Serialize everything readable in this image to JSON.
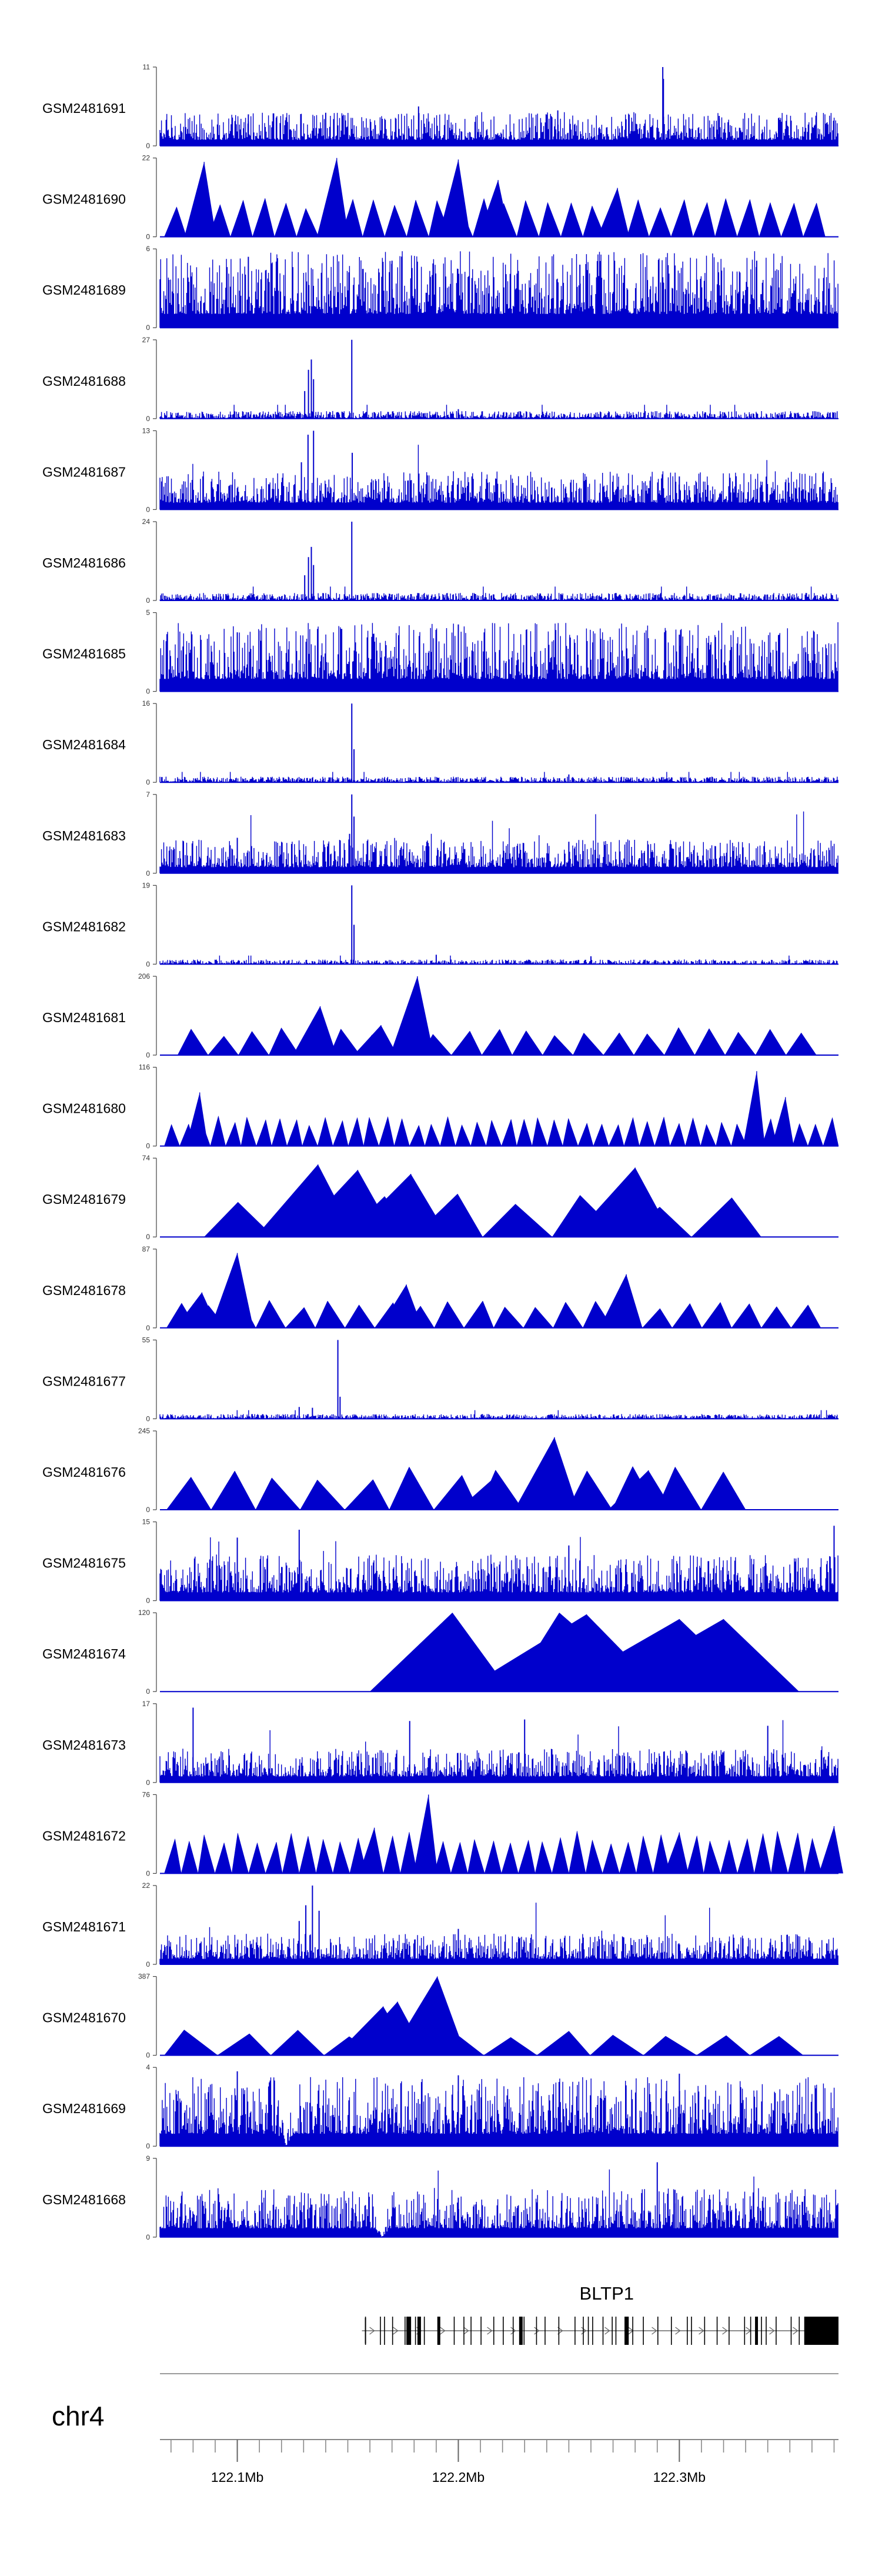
{
  "chart_data": {
    "type": "area",
    "title": "",
    "xlabel": "",
    "ylabel": "",
    "x_range_mb": [
      122.065,
      122.372
    ],
    "color": "#0000cc",
    "tracks": [
      {
        "name": "GSM2481691",
        "ymax": "11",
        "ymin": "0",
        "max": 11,
        "pattern": "dense",
        "level": 0.22,
        "peaks": [
          [
            122.2925,
            1.0
          ],
          [
            122.2928,
            0.85
          ],
          [
            122.245,
            0.45
          ],
          [
            122.14,
            0.42
          ],
          [
            122.318,
            0.38
          ],
          [
            122.182,
            0.5
          ],
          [
            122.105,
            0.4
          ]
        ]
      },
      {
        "name": "GSM2481690",
        "ymax": "22",
        "ymin": "0",
        "max": 22,
        "pattern": "triangles",
        "tri_count": 30,
        "span": [
          122.067,
          122.366
        ],
        "level": 0.45,
        "peaks": [
          [
            122.085,
            0.95
          ],
          [
            122.145,
            1.0
          ],
          [
            122.2,
            0.98
          ],
          [
            122.218,
            0.72
          ],
          [
            122.272,
            0.62
          ]
        ]
      },
      {
        "name": "GSM2481689",
        "ymax": "6",
        "ymin": "0",
        "max": 6,
        "pattern": "dense",
        "level": 0.5,
        "peaks": [
          [
            122.105,
            0.9
          ],
          [
            122.17,
            0.85
          ],
          [
            122.255,
            0.8
          ],
          [
            122.335,
            0.85
          ]
        ]
      },
      {
        "name": "GSM2481688",
        "ymax": "27",
        "ymin": "0",
        "max": 27,
        "pattern": "sparse",
        "level": 0.08,
        "peaks": [
          [
            122.1322,
            0.62
          ],
          [
            122.1335,
            0.75
          ],
          [
            122.1345,
            0.5
          ],
          [
            122.1305,
            0.35
          ],
          [
            122.1518,
            1.0
          ],
          [
            122.2,
            0.12
          ]
        ]
      },
      {
        "name": "GSM2481687",
        "ymax": "13",
        "ymin": "0",
        "max": 13,
        "pattern": "dense",
        "level": 0.25,
        "peaks": [
          [
            122.132,
            0.95
          ],
          [
            122.1345,
            1.0
          ],
          [
            122.129,
            0.6
          ],
          [
            122.152,
            0.72
          ],
          [
            122.2,
            0.4
          ],
          [
            122.3,
            0.42
          ]
        ]
      },
      {
        "name": "GSM2481686",
        "ymax": "24",
        "ymin": "0",
        "max": 24,
        "pattern": "sparse",
        "level": 0.08,
        "peaks": [
          [
            122.1322,
            0.55
          ],
          [
            122.1335,
            0.68
          ],
          [
            122.1345,
            0.45
          ],
          [
            122.1305,
            0.32
          ],
          [
            122.1518,
            1.0
          ]
        ]
      },
      {
        "name": "GSM2481685",
        "ymax": "5",
        "ymin": "0",
        "max": 5,
        "pattern": "dense",
        "level": 0.45,
        "peaks": [
          [
            122.2,
            0.85
          ],
          [
            122.1,
            0.75
          ],
          [
            122.3,
            0.72
          ]
        ]
      },
      {
        "name": "GSM2481684",
        "ymax": "16",
        "ymin": "0",
        "max": 16,
        "pattern": "sparse",
        "level": 0.06,
        "peaks": [
          [
            122.1518,
            1.0
          ],
          [
            122.1528,
            0.42
          ],
          [
            122.25,
            0.1
          ]
        ]
      },
      {
        "name": "GSM2481683",
        "ymax": "7",
        "ymin": "0",
        "max": 7,
        "pattern": "dense",
        "level": 0.22,
        "peaks": [
          [
            122.1518,
            1.0
          ],
          [
            122.1528,
            0.72
          ],
          [
            122.1508,
            0.5
          ],
          [
            122.1,
            0.45
          ],
          [
            122.25,
            0.4
          ]
        ]
      },
      {
        "name": "GSM2481682",
        "ymax": "19",
        "ymin": "0",
        "max": 19,
        "pattern": "sparse",
        "level": 0.05,
        "peaks": [
          [
            122.1518,
            1.0
          ],
          [
            122.1528,
            0.5
          ],
          [
            122.19,
            0.12
          ],
          [
            122.26,
            0.1
          ]
        ]
      },
      {
        "name": "GSM2481681",
        "ymax": "206",
        "ymin": "0",
        "max": 206,
        "pattern": "triangles",
        "tri_count": 21,
        "span": [
          122.073,
          122.362
        ],
        "level": 0.32,
        "peaks": [
          [
            122.1815,
            1.0
          ],
          [
            122.1375,
            0.62
          ],
          [
            122.165,
            0.38
          ]
        ]
      },
      {
        "name": "GSM2481680",
        "ymax": "116",
        "ymin": "0",
        "max": 116,
        "pattern": "triangles",
        "tri_count": 44,
        "span": [
          122.067,
          122.372
        ],
        "level": 0.35,
        "peaks": [
          [
            122.083,
            0.68
          ],
          [
            122.335,
            0.95
          ],
          [
            122.348,
            0.62
          ]
        ]
      },
      {
        "name": "GSM2481679",
        "ymax": "74",
        "ymin": "0",
        "max": 74,
        "pattern": "triangles",
        "tri_count": 8,
        "span": [
          122.085,
          122.337
        ],
        "level": 0.5,
        "peaks": [
          [
            122.1365,
            0.92
          ],
          [
            122.1545,
            0.85
          ],
          [
            122.1785,
            0.8
          ],
          [
            122.28,
            0.88
          ]
        ]
      },
      {
        "name": "GSM2481678",
        "ymax": "87",
        "ymin": "0",
        "max": 87,
        "pattern": "triangles",
        "tri_count": 22,
        "span": [
          122.068,
          122.364
        ],
        "level": 0.32,
        "peaks": [
          [
            122.1,
            0.95
          ],
          [
            122.084,
            0.45
          ],
          [
            122.1765,
            0.55
          ],
          [
            122.276,
            0.68
          ]
        ]
      },
      {
        "name": "GSM2481677",
        "ymax": "55",
        "ymin": "0",
        "max": 55,
        "pattern": "sparse",
        "level": 0.05,
        "peaks": [
          [
            122.1455,
            1.0
          ],
          [
            122.1465,
            0.28
          ],
          [
            122.128,
            0.15
          ],
          [
            122.134,
            0.14
          ]
        ]
      },
      {
        "name": "GSM2481676",
        "ymax": "245",
        "ymin": "0",
        "max": 245,
        "pattern": "triangles",
        "tri_count": 13,
        "span": [
          122.068,
          122.33
        ],
        "level": 0.5,
        "peaks": [
          [
            122.2435,
            0.92
          ],
          [
            122.218,
            0.45
          ],
          [
            122.286,
            0.5
          ]
        ]
      },
      {
        "name": "GSM2481675",
        "ymax": "15",
        "ymin": "0",
        "max": 15,
        "pattern": "dense",
        "level": 0.3,
        "peaks": [
          [
            122.128,
            0.9
          ],
          [
            122.1,
            0.8
          ],
          [
            122.37,
            0.95
          ],
          [
            122.25,
            0.7
          ]
        ]
      },
      {
        "name": "GSM2481674",
        "ymax": "120",
        "ymin": "0",
        "max": 120,
        "pattern": "triangles",
        "tri_count": 3,
        "span": [
          122.16,
          122.35
        ],
        "level": 1.0,
        "peaks": [
          [
            122.258,
            0.98
          ],
          [
            122.3,
            0.92
          ],
          [
            122.32,
            0.92
          ]
        ]
      },
      {
        "name": "GSM2481673",
        "ymax": "17",
        "ymin": "0",
        "max": 17,
        "pattern": "dense",
        "level": 0.22,
        "peaks": [
          [
            122.08,
            0.95
          ],
          [
            122.178,
            0.78
          ],
          [
            122.23,
            0.8
          ],
          [
            122.34,
            0.72
          ]
        ]
      },
      {
        "name": "GSM2481672",
        "ymax": "76",
        "ymin": "0",
        "max": 76,
        "pattern": "triangles",
        "tri_count": 40,
        "span": [
          122.067,
          122.372
        ],
        "level": 0.5,
        "peaks": [
          [
            122.1865,
            1.0
          ],
          [
            122.162,
            0.58
          ],
          [
            122.3,
            0.52
          ],
          [
            122.37,
            0.6
          ]
        ]
      },
      {
        "name": "GSM2481671",
        "ymax": "22",
        "ymin": "0",
        "max": 22,
        "pattern": "dense",
        "level": 0.2,
        "peaks": [
          [
            122.134,
            1.0
          ],
          [
            122.131,
            0.75
          ],
          [
            122.137,
            0.68
          ],
          [
            122.128,
            0.55
          ],
          [
            122.2,
            0.45
          ]
        ]
      },
      {
        "name": "GSM2481670",
        "ymax": "387",
        "ymin": "0",
        "max": 387,
        "pattern": "triangles",
        "tri_count": 12,
        "span": [
          122.067,
          122.356
        ],
        "level": 0.3,
        "peaks": [
          [
            122.1905,
            1.0
          ],
          [
            122.1725,
            0.68
          ],
          [
            122.166,
            0.62
          ]
        ]
      },
      {
        "name": "GSM2481669",
        "ymax": "4",
        "ymin": "0",
        "max": 4,
        "pattern": "dense",
        "level": 0.45,
        "dips": [
          122.122
        ],
        "peaks": [
          [
            122.1,
            0.95
          ],
          [
            122.2,
            0.9
          ],
          [
            122.3,
            0.92
          ]
        ]
      },
      {
        "name": "GSM2481668",
        "ymax": "9",
        "ymin": "0",
        "max": 9,
        "pattern": "dense",
        "level": 0.32,
        "dips": [
          122.1655
        ],
        "peaks": [
          [
            122.29,
            0.95
          ],
          [
            122.298,
            0.6
          ],
          [
            122.2,
            0.5
          ]
        ]
      }
    ],
    "gene": {
      "name": "BLTP1",
      "start_mb": 122.158,
      "end_mb": 122.372,
      "strand": "+"
    },
    "chromosome": "chr4",
    "axis": {
      "ticks": [
        "122.1Mb",
        "122.2Mb",
        "122.3Mb"
      ],
      "tick_values": [
        122.1,
        122.2,
        122.3
      ],
      "minor_step": 0.01
    }
  }
}
